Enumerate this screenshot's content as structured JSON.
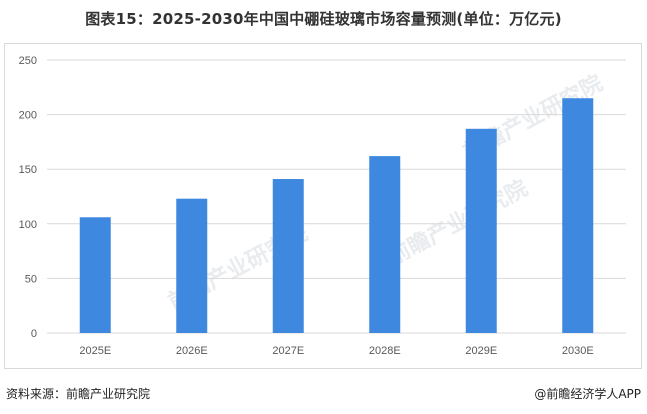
{
  "title": "图表15：2025-2030年中国中硼硅玻璃市场容量预测(单位：万亿元)",
  "footer": {
    "source": "资料来源：前瞻产业研究院",
    "brand": "@前瞻经济学人APP"
  },
  "watermark": "前瞻产业研究院",
  "colors": {
    "bar": "#3f88e0",
    "grid": "#d9d9d9",
    "tick": "#595959"
  },
  "chart_data": {
    "type": "bar",
    "categories": [
      "2025E",
      "2026E",
      "2027E",
      "2028E",
      "2029E",
      "2030E"
    ],
    "values": [
      106,
      123,
      141,
      162,
      187,
      215
    ],
    "ylim": [
      0,
      250
    ],
    "yticks": [
      0,
      50,
      100,
      150,
      200,
      250
    ],
    "grid": true
  }
}
